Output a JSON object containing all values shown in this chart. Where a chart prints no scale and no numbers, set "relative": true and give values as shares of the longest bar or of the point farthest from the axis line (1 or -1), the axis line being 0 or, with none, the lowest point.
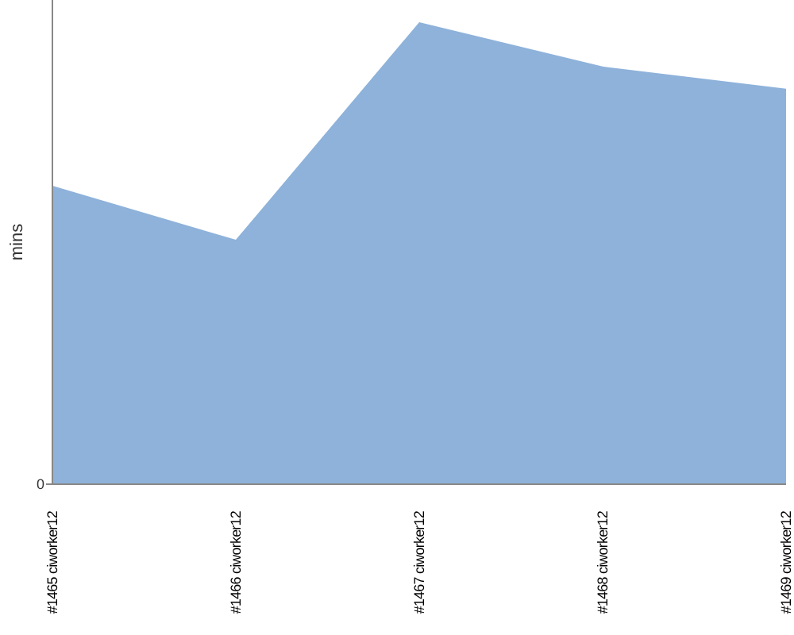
{
  "chart_data": {
    "type": "area",
    "ylabel": "mins",
    "relative": true,
    "annotations": [
      "0"
    ],
    "categories": [
      "#1465 ciworker12",
      "#1466 ciworker12",
      "#1467 ciworker12",
      "#1468 ciworker12",
      "#1469 ciworker12"
    ],
    "series": [
      {
        "color": "#8eb2da",
        "values": [
          0.646,
          0.529,
          1,
          0.904,
          0.856
        ]
      }
    ]
  }
}
